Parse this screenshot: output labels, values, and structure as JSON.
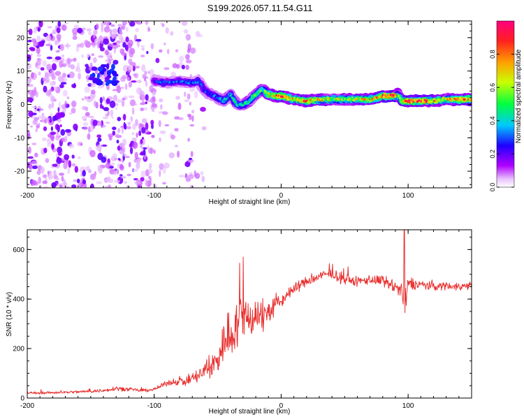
{
  "title": "S199.2026.057.11.54.G11",
  "colors": {
    "snr_line": "#e8302f",
    "axis": "#000000",
    "background": "#ffffff",
    "colorbar_stops": [
      "#ffffff",
      "#b000ff",
      "#1f00ff",
      "#00c8ff",
      "#00ff40",
      "#c8ff00",
      "#ffa000",
      "#ff2020",
      "#ff0080"
    ]
  },
  "chart_data": [
    {
      "type": "heatmap",
      "name": "spectrogram",
      "title": "S199.2026.057.11.54.G11",
      "xlabel": "Height of straight line (km)",
      "ylabel": "Frequency (Hz)",
      "xlim": [
        -200,
        150
      ],
      "ylim": [
        -25,
        25
      ],
      "xticks": [
        -200,
        -100,
        0,
        100
      ],
      "yticks": [
        -20,
        -10,
        0,
        10,
        20
      ],
      "xtick_labels": [
        "-200",
        "-100",
        "0",
        "100"
      ],
      "ytick_labels": [
        "-20",
        "-10",
        "0",
        "10",
        "20"
      ],
      "colorbar": {
        "label": "Normalized spectral amplitude",
        "range": [
          0,
          1
        ],
        "ticks": [
          0.0,
          0.2,
          0.4,
          0.6,
          0.8
        ],
        "tick_labels": [
          "0.0",
          "0.2",
          "0.4",
          "0.6",
          "0.8"
        ]
      },
      "ridge": {
        "x": [
          -100,
          -90,
          -80,
          -70,
          -65,
          -60,
          -55,
          -50,
          -45,
          -40,
          -35,
          -30,
          -25,
          -20,
          -15,
          -10,
          -5,
          0,
          10,
          20,
          30,
          40,
          50,
          60,
          70,
          80,
          90,
          92,
          95,
          100,
          110,
          120,
          130,
          140,
          150
        ],
        "freq": [
          7,
          6.5,
          7,
          6.5,
          7,
          4,
          3,
          2,
          1,
          3,
          0,
          0,
          1,
          3,
          4.5,
          3,
          2.5,
          2.5,
          1.5,
          1,
          1.5,
          1.5,
          1.5,
          1.5,
          1.5,
          2.5,
          2.5,
          3,
          1,
          1,
          1,
          1,
          1.5,
          1.5,
          1.5
        ],
        "amplitude": [
          0.25,
          0.3,
          0.3,
          0.3,
          0.3,
          0.3,
          0.3,
          0.35,
          0.4,
          0.4,
          0.45,
          0.45,
          0.45,
          0.5,
          0.5,
          0.6,
          0.75,
          0.85,
          0.7,
          0.8,
          0.7,
          0.6,
          0.6,
          0.7,
          0.7,
          0.85,
          0.9,
          0.5,
          0.7,
          0.85,
          0.9,
          0.75,
          0.7,
          0.75,
          0.8
        ]
      },
      "noise_regions": [
        {
          "x": [
            -200,
            -170
          ],
          "density": 0.9
        },
        {
          "x": [
            -170,
            -150
          ],
          "density": 0.55
        },
        {
          "x": [
            -150,
            -130
          ],
          "density": 0.8
        },
        {
          "x": [
            -130,
            -100
          ],
          "density": 0.75
        },
        {
          "x": [
            -100,
            -75
          ],
          "density": 0.25
        },
        {
          "x": [
            -75,
            -70
          ],
          "density": 0.6
        },
        {
          "x": [
            -70,
            -60
          ],
          "density": 0.15
        }
      ]
    },
    {
      "type": "line",
      "name": "snr",
      "xlabel": "Height of straight line (km)",
      "ylabel": "SNR (10 * v/v)",
      "xlim": [
        -200,
        150
      ],
      "ylim": [
        0,
        680
      ],
      "xticks": [
        -200,
        -100,
        0,
        100
      ],
      "yticks": [
        0,
        200,
        400,
        600
      ],
      "xtick_labels": [
        "-200",
        "-100",
        "0",
        "100"
      ],
      "ytick_labels": [
        "0",
        "200",
        "400",
        "600"
      ],
      "series": [
        {
          "name": "SNR",
          "x": [
            -200,
            -180,
            -160,
            -140,
            -130,
            -120,
            -110,
            -100,
            -90,
            -80,
            -75,
            -70,
            -65,
            -60,
            -55,
            -50,
            -45,
            -40,
            -35,
            -30,
            -25,
            -20,
            -15,
            -10,
            -5,
            0,
            5,
            10,
            15,
            20,
            25,
            30,
            35,
            40,
            50,
            60,
            70,
            80,
            90,
            95,
            98,
            100,
            105,
            110,
            120,
            130,
            140,
            150
          ],
          "y": [
            20,
            22,
            25,
            30,
            40,
            35,
            30,
            35,
            60,
            70,
            65,
            80,
            90,
            110,
            120,
            160,
            230,
            260,
            300,
            320,
            330,
            340,
            330,
            350,
            370,
            390,
            420,
            440,
            460,
            470,
            480,
            490,
            500,
            500,
            480,
            470,
            480,
            470,
            450,
            430,
            350,
            470,
            460,
            460,
            450,
            455,
            450,
            455
          ],
          "amplitude": [
            8,
            8,
            9,
            10,
            14,
            10,
            10,
            10,
            15,
            25,
            25,
            35,
            45,
            60,
            80,
            100,
            140,
            150,
            160,
            150,
            140,
            120,
            100,
            80,
            60,
            40,
            35,
            35,
            30,
            30,
            30,
            30,
            30,
            30,
            30,
            30,
            30,
            35,
            40,
            50,
            150,
            40,
            30,
            30,
            25,
            25,
            25,
            25
          ]
        }
      ],
      "peaks": [
        {
          "x": -30,
          "y": 570
        },
        {
          "x": 97,
          "y": 680
        }
      ]
    }
  ]
}
